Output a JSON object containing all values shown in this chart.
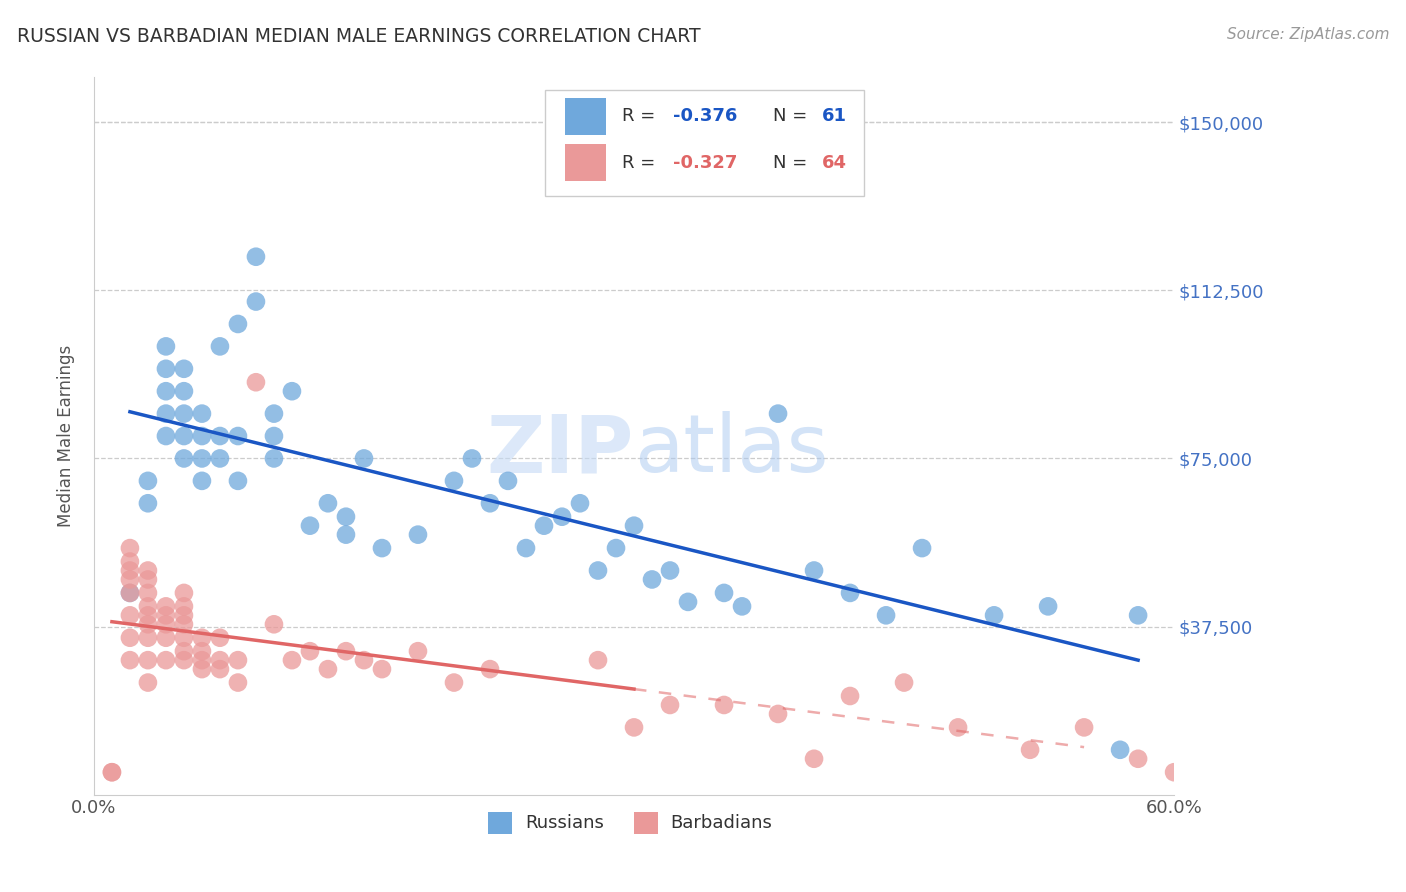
{
  "title": "RUSSIAN VS BARBADIAN MEDIAN MALE EARNINGS CORRELATION CHART",
  "source": "Source: ZipAtlas.com",
  "ylabel": "Median Male Earnings",
  "xlim": [
    0.0,
    0.6
  ],
  "ylim": [
    0,
    160000
  ],
  "yticks": [
    0,
    37500,
    75000,
    112500,
    150000
  ],
  "ytick_labels": [
    "",
    "$37,500",
    "$75,000",
    "$112,500",
    "$150,000"
  ],
  "xticks": [
    0.0,
    0.1,
    0.2,
    0.3,
    0.4,
    0.5,
    0.6
  ],
  "xtick_labels": [
    "0.0%",
    "",
    "",
    "",
    "",
    "",
    "60.0%"
  ],
  "r_blue": "-0.376",
  "n_blue": "61",
  "r_pink": "-0.327",
  "n_pink": "64",
  "legend_label_blue": "Russians",
  "legend_label_pink": "Barbadians",
  "blue_color": "#6fa8dc",
  "pink_color": "#ea9999",
  "blue_line_color": "#1a56c4",
  "pink_line_color": "#e06666",
  "axis_color": "#4472c4",
  "watermark_zip": "ZIP",
  "watermark_atlas": "atlas",
  "russian_x": [
    0.02,
    0.03,
    0.03,
    0.04,
    0.04,
    0.04,
    0.04,
    0.04,
    0.05,
    0.05,
    0.05,
    0.05,
    0.05,
    0.06,
    0.06,
    0.06,
    0.06,
    0.07,
    0.07,
    0.07,
    0.08,
    0.08,
    0.08,
    0.09,
    0.09,
    0.1,
    0.1,
    0.1,
    0.11,
    0.12,
    0.13,
    0.14,
    0.14,
    0.15,
    0.16,
    0.18,
    0.2,
    0.21,
    0.22,
    0.23,
    0.24,
    0.25,
    0.26,
    0.27,
    0.28,
    0.29,
    0.3,
    0.31,
    0.32,
    0.33,
    0.35,
    0.36,
    0.38,
    0.4,
    0.42,
    0.44,
    0.46,
    0.5,
    0.53,
    0.57,
    0.58
  ],
  "russian_y": [
    45000,
    65000,
    70000,
    80000,
    85000,
    90000,
    95000,
    100000,
    75000,
    80000,
    85000,
    90000,
    95000,
    70000,
    75000,
    80000,
    85000,
    75000,
    80000,
    100000,
    70000,
    80000,
    105000,
    110000,
    120000,
    75000,
    80000,
    85000,
    90000,
    60000,
    65000,
    58000,
    62000,
    75000,
    55000,
    58000,
    70000,
    75000,
    65000,
    70000,
    55000,
    60000,
    62000,
    65000,
    50000,
    55000,
    60000,
    48000,
    50000,
    43000,
    45000,
    42000,
    85000,
    50000,
    45000,
    40000,
    55000,
    40000,
    42000,
    10000,
    40000
  ],
  "barbadian_x": [
    0.01,
    0.01,
    0.02,
    0.02,
    0.02,
    0.02,
    0.02,
    0.02,
    0.02,
    0.02,
    0.03,
    0.03,
    0.03,
    0.03,
    0.03,
    0.03,
    0.03,
    0.03,
    0.03,
    0.04,
    0.04,
    0.04,
    0.04,
    0.04,
    0.05,
    0.05,
    0.05,
    0.05,
    0.05,
    0.05,
    0.05,
    0.06,
    0.06,
    0.06,
    0.06,
    0.07,
    0.07,
    0.07,
    0.08,
    0.08,
    0.09,
    0.1,
    0.11,
    0.12,
    0.13,
    0.14,
    0.15,
    0.16,
    0.18,
    0.2,
    0.22,
    0.28,
    0.3,
    0.32,
    0.35,
    0.38,
    0.4,
    0.42,
    0.45,
    0.48,
    0.52,
    0.55,
    0.58,
    0.6
  ],
  "barbadian_y": [
    5000,
    5000,
    30000,
    35000,
    40000,
    45000,
    48000,
    50000,
    52000,
    55000,
    25000,
    30000,
    35000,
    38000,
    40000,
    42000,
    45000,
    48000,
    50000,
    30000,
    35000,
    38000,
    40000,
    42000,
    30000,
    32000,
    35000,
    38000,
    40000,
    42000,
    45000,
    28000,
    30000,
    32000,
    35000,
    28000,
    30000,
    35000,
    25000,
    30000,
    92000,
    38000,
    30000,
    32000,
    28000,
    32000,
    30000,
    28000,
    32000,
    25000,
    28000,
    30000,
    15000,
    20000,
    20000,
    18000,
    8000,
    22000,
    25000,
    15000,
    10000,
    15000,
    8000,
    5000
  ]
}
